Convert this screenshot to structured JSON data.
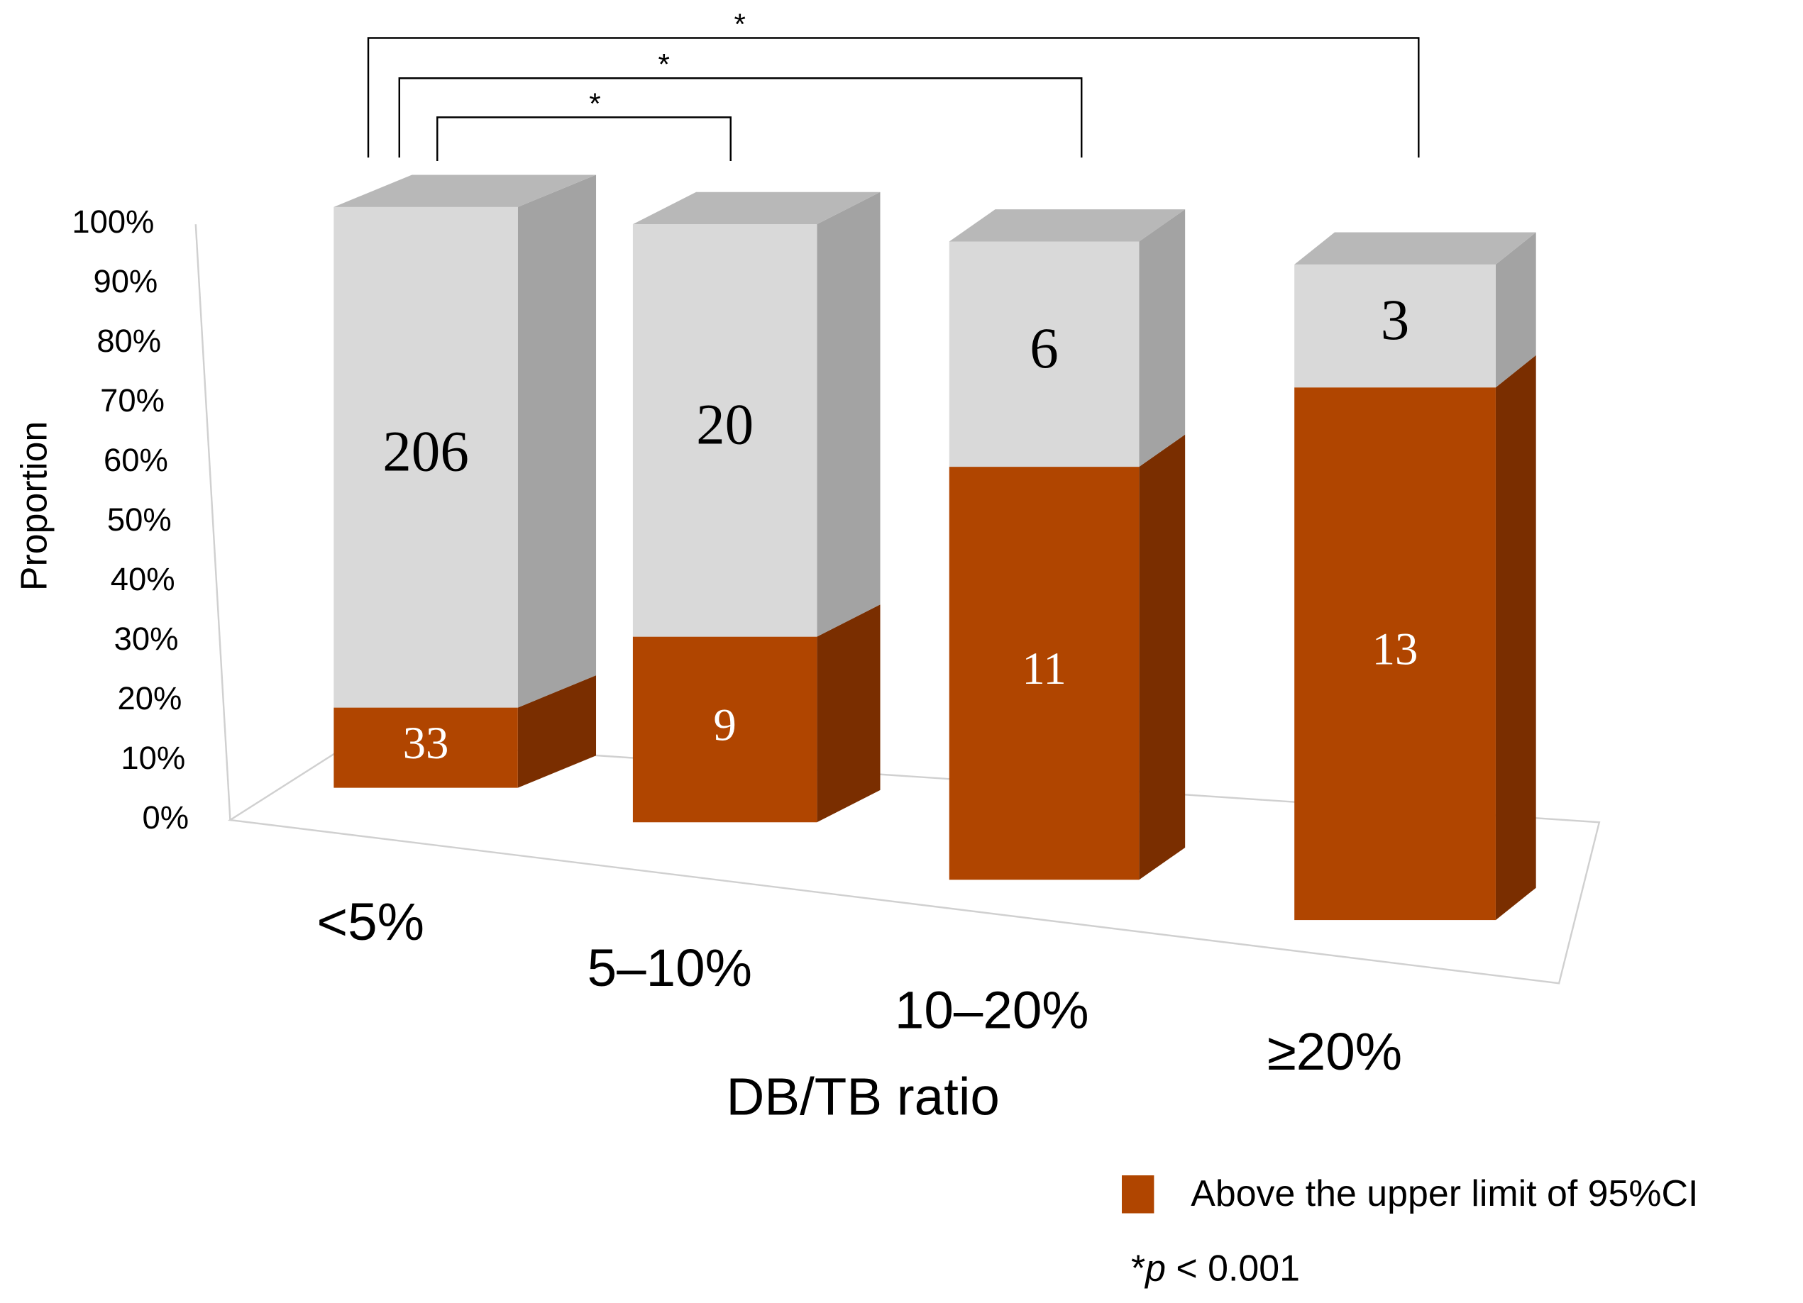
{
  "chart_data": {
    "type": "bar",
    "stacked": "percent",
    "categories": [
      "<5%",
      "5–10%",
      "10–20%",
      "≥20%"
    ],
    "series": [
      {
        "name": "Above the upper limit of 95%CI",
        "color": "#b04500",
        "side_color": "#7a2e00",
        "label_color": "#ffffff",
        "values": [
          33,
          9,
          11,
          13
        ]
      },
      {
        "color": "#d9d9d9",
        "side_color": "#a3a3a3",
        "label_color": "#000000",
        "values": [
          206,
          20,
          6,
          3
        ]
      }
    ],
    "ylim": [
      0,
      100
    ],
    "yticks": [
      {
        "value": 0,
        "label": "0%"
      },
      {
        "value": 10,
        "label": "10%"
      },
      {
        "value": 20,
        "label": "20%"
      },
      {
        "value": 30,
        "label": "30%"
      },
      {
        "value": 40,
        "label": "40%"
      },
      {
        "value": 50,
        "label": "50%"
      },
      {
        "value": 60,
        "label": "60%"
      },
      {
        "value": 70,
        "label": "70%"
      },
      {
        "value": 80,
        "label": "80%"
      },
      {
        "value": 90,
        "label": "90%"
      },
      {
        "value": 100,
        "label": "100%"
      }
    ],
    "ylabel": "Proportion",
    "xlabel": "DB/TB ratio",
    "brackets": [
      {
        "label": "*"
      },
      {
        "label": "*"
      },
      {
        "label": "*"
      }
    ],
    "footnote": [
      "*",
      "p",
      " < 0.001"
    ]
  }
}
